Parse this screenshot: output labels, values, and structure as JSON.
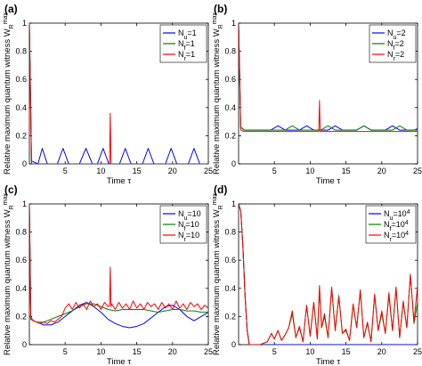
{
  "chart_data": [
    {
      "type": "line",
      "panel_label": "(a)",
      "xlabel": "Time τ",
      "ylabel": "Relative maximum quantum witness W",
      "ylabel_sub": "R",
      "ylabel_sup": "max",
      "xlim": [
        0,
        25
      ],
      "ylim": [
        0,
        1
      ],
      "xticks": [
        "5",
        "10",
        "15",
        "20",
        "25"
      ],
      "yticks": [
        "0",
        "0.2",
        "0.4",
        "0.6",
        "0.8",
        "1"
      ],
      "legend_position": "top-right",
      "series": [
        {
          "name": "N_u=1",
          "label_main": "N",
          "label_sub": "u",
          "label_rest": "=1",
          "color": "#0000ff",
          "x": [
            0,
            0.3,
            1.2,
            1.8,
            2.5,
            3.2,
            3.9,
            4.7,
            5.5,
            6.2,
            7.0,
            7.9,
            8.8,
            9.5,
            10.3,
            11.1,
            11.9,
            12.6,
            13.4,
            14.2,
            15.0,
            15.8,
            16.6,
            17.4,
            18.2,
            19.0,
            19.8,
            20.6,
            21.4,
            22.2,
            23.0,
            23.8,
            24.6,
            25
          ],
          "y": [
            1,
            0.02,
            0.0,
            0.11,
            0.0,
            0.0,
            0.0,
            0.11,
            0.0,
            0.0,
            0.0,
            0.11,
            0.0,
            0.0,
            0.11,
            0.0,
            0.0,
            0.0,
            0.11,
            0.0,
            0.0,
            0.0,
            0.11,
            0.0,
            0.0,
            0.0,
            0.11,
            0.0,
            0.0,
            0.0,
            0.11,
            0.0,
            0.0,
            0.0
          ]
        },
        {
          "name": "N_f=1",
          "label_main": "N",
          "label_sub": "f",
          "label_rest": "=1",
          "color": "#008000",
          "x": [
            0,
            0.3,
            25
          ],
          "y": [
            1,
            0.0,
            0.0
          ]
        },
        {
          "name": "N_r=1",
          "label_main": "N",
          "label_sub": "r",
          "label_rest": "=1",
          "color": "#ff0000",
          "x": [
            0,
            0.3,
            11.2,
            11.3,
            11.4,
            25
          ],
          "y": [
            1,
            0.0,
            0.0,
            0.36,
            0.0,
            0.0
          ]
        }
      ]
    },
    {
      "type": "line",
      "panel_label": "(b)",
      "xlabel": "Time τ",
      "ylabel": "Relative maximum quantum witness W",
      "ylabel_sub": "R",
      "ylabel_sup": "max",
      "xlim": [
        0,
        25
      ],
      "ylim": [
        0,
        1
      ],
      "xticks": [
        "5",
        "10",
        "15",
        "20",
        "25"
      ],
      "yticks": [
        "0",
        "0.2",
        "0.4",
        "0.6",
        "0.8",
        "1"
      ],
      "legend_position": "top-right",
      "series": [
        {
          "name": "N_u=2",
          "label_main": "N",
          "label_sub": "u",
          "label_rest": "=2",
          "color": "#0000ff",
          "x": [
            0,
            0.3,
            0.8,
            1.5,
            2.5,
            3.5,
            4.5,
            5.5,
            6.5,
            7.5,
            8.5,
            9.5,
            10.5,
            11.5,
            12.5,
            13.5,
            14.5,
            15.5,
            16.5,
            17.5,
            18.5,
            19.5,
            20.5,
            21.5,
            22.5,
            23.5,
            24.5,
            25
          ],
          "y": [
            1,
            0.26,
            0.24,
            0.24,
            0.24,
            0.24,
            0.24,
            0.27,
            0.24,
            0.24,
            0.24,
            0.27,
            0.24,
            0.24,
            0.24,
            0.27,
            0.24,
            0.24,
            0.24,
            0.27,
            0.24,
            0.24,
            0.24,
            0.27,
            0.24,
            0.24,
            0.24,
            0.25
          ]
        },
        {
          "name": "N_f=2",
          "label_main": "N",
          "label_sub": "f",
          "label_rest": "=2",
          "color": "#008000",
          "x": [
            0,
            0.3,
            0.8,
            2.0,
            3.5,
            5.0,
            6.5,
            7.5,
            8.5,
            10.0,
            11.5,
            12.5,
            13.5,
            15.0,
            16.5,
            17.5,
            18.5,
            20.0,
            21.5,
            22.5,
            23.5,
            25
          ],
          "y": [
            1,
            0.26,
            0.24,
            0.24,
            0.24,
            0.24,
            0.24,
            0.27,
            0.24,
            0.24,
            0.24,
            0.27,
            0.24,
            0.24,
            0.24,
            0.27,
            0.24,
            0.24,
            0.24,
            0.27,
            0.24,
            0.24
          ]
        },
        {
          "name": "N_r=2",
          "label_main": "N",
          "label_sub": "r",
          "label_rest": "=2",
          "color": "#ff0000",
          "x": [
            0,
            0.3,
            0.8,
            11.2,
            11.3,
            11.4,
            25
          ],
          "y": [
            1,
            0.24,
            0.23,
            0.23,
            0.45,
            0.23,
            0.23
          ]
        }
      ]
    },
    {
      "type": "line",
      "panel_label": "(c)",
      "xlabel": "Time τ",
      "ylabel": "Relative maximum quantum witness W",
      "ylabel_sub": "R",
      "ylabel_sup": "max",
      "xlim": [
        0,
        25
      ],
      "ylim": [
        0,
        1
      ],
      "xticks": [
        "5",
        "10",
        "15",
        "20",
        "25"
      ],
      "yticks": [
        "0",
        "0.2",
        "0.4",
        "0.6",
        "0.8",
        "1"
      ],
      "legend_position": "top-right",
      "series": [
        {
          "name": "N_u=10",
          "label_main": "N",
          "label_sub": "u",
          "label_rest": "=10",
          "color": "#0000ff",
          "x": [
            0,
            0.2,
            1,
            2,
            3,
            4,
            5,
            6,
            7,
            8,
            9,
            10,
            11,
            12,
            13,
            14,
            15,
            16,
            17,
            18,
            19,
            20,
            21,
            22,
            23,
            24,
            25
          ],
          "y": [
            1,
            0.18,
            0.16,
            0.14,
            0.14,
            0.16,
            0.2,
            0.24,
            0.28,
            0.3,
            0.27,
            0.23,
            0.18,
            0.15,
            0.13,
            0.12,
            0.13,
            0.15,
            0.19,
            0.23,
            0.27,
            0.28,
            0.25,
            0.2,
            0.17,
            0.2,
            0.23
          ]
        },
        {
          "name": "N_f=10",
          "label_main": "N",
          "label_sub": "f",
          "label_rest": "=10",
          "color": "#008000",
          "x": [
            0,
            0.2,
            1,
            2,
            3,
            4,
            5,
            6,
            7,
            8,
            9,
            10,
            11,
            12,
            13,
            14,
            15,
            16,
            17,
            18,
            19,
            20,
            21,
            22,
            23,
            24,
            25
          ],
          "y": [
            1,
            0.18,
            0.16,
            0.16,
            0.18,
            0.2,
            0.22,
            0.24,
            0.27,
            0.29,
            0.29,
            0.27,
            0.25,
            0.24,
            0.25,
            0.25,
            0.25,
            0.25,
            0.24,
            0.23,
            0.24,
            0.25,
            0.25,
            0.24,
            0.24,
            0.23,
            0.23
          ]
        },
        {
          "name": "N_r=10",
          "label_main": "N",
          "label_sub": "r",
          "label_rest": "=10",
          "color": "#ff0000",
          "x": [
            0,
            0.2,
            0.5,
            1,
            1.5,
            2,
            2.5,
            3,
            3.5,
            4,
            4.5,
            5,
            5.5,
            6,
            6.5,
            7,
            7.5,
            8,
            8.5,
            9,
            9.5,
            10,
            10.5,
            11,
            11.2,
            11.3,
            11.4,
            11.5,
            12,
            12.5,
            13,
            13.5,
            14,
            14.5,
            15,
            15.5,
            16,
            16.5,
            17,
            17.5,
            18,
            18.5,
            19,
            19.5,
            20,
            20.5,
            21,
            21.5,
            22,
            22.5,
            23,
            23.5,
            24,
            24.5,
            25
          ],
          "y": [
            1,
            0.2,
            0.17,
            0.16,
            0.15,
            0.16,
            0.15,
            0.17,
            0.16,
            0.18,
            0.2,
            0.26,
            0.29,
            0.25,
            0.3,
            0.26,
            0.29,
            0.25,
            0.31,
            0.27,
            0.29,
            0.25,
            0.3,
            0.27,
            0.28,
            0.55,
            0.27,
            0.29,
            0.25,
            0.3,
            0.26,
            0.29,
            0.25,
            0.31,
            0.26,
            0.29,
            0.25,
            0.3,
            0.27,
            0.29,
            0.25,
            0.3,
            0.26,
            0.29,
            0.25,
            0.31,
            0.26,
            0.29,
            0.25,
            0.3,
            0.27,
            0.29,
            0.25,
            0.28,
            0.26
          ]
        }
      ]
    },
    {
      "type": "line",
      "panel_label": "(d)",
      "xlabel": "Time τ",
      "ylabel": "Relative maximum quantum witness W",
      "ylabel_sub": "R",
      "ylabel_sup": "max",
      "xlim": [
        0,
        25
      ],
      "ylim": [
        0,
        1
      ],
      "xticks": [
        "5",
        "10",
        "15",
        "20",
        "25"
      ],
      "yticks": [
        "0",
        "0.2",
        "0.4",
        "0.6",
        "0.8",
        "1"
      ],
      "legend_position": "top-right",
      "series": [
        {
          "name": "N_u=10^4",
          "label_main": "N",
          "label_sub": "u",
          "label_rest": "=10",
          "label_sup": "4",
          "color": "#0000ff",
          "x": [
            0,
            0.3,
            0.6,
            0.9,
            1.2,
            1.5,
            2,
            25
          ],
          "y": [
            1,
            0.95,
            0.7,
            0.35,
            0.1,
            0.0,
            0.0,
            0.0
          ]
        },
        {
          "name": "N_f=10^4",
          "label_main": "N",
          "label_sub": "f",
          "label_rest": "=10",
          "label_sup": "4",
          "color": "#008000",
          "x": [
            0,
            0.3,
            0.6,
            0.9,
            1.2,
            1.5,
            2,
            3,
            4,
            4.6,
            5,
            5.5,
            6,
            6.5,
            7,
            7.5,
            8,
            8.5,
            9,
            9.5,
            10,
            10.5,
            11,
            11.3,
            11.6,
            12,
            12.5,
            13,
            13.5,
            14,
            14.5,
            15,
            15.5,
            16,
            16.5,
            17,
            17.5,
            18,
            18.5,
            19,
            19.5,
            20,
            20.5,
            21,
            21.5,
            22,
            22.5,
            23,
            23.5,
            24,
            24.5,
            25
          ],
          "y": [
            1,
            0.95,
            0.7,
            0.35,
            0.1,
            0.0,
            0.0,
            0.0,
            0.02,
            0.08,
            0.04,
            0.1,
            0.03,
            0.07,
            0.12,
            0.22,
            0.05,
            0.12,
            0.02,
            0.28,
            0.06,
            0.3,
            0.04,
            0.4,
            0.12,
            0.2,
            0.05,
            0.4,
            0.1,
            0.35,
            0.08,
            0.1,
            0.03,
            0.28,
            0.12,
            0.38,
            0.05,
            0.15,
            0.02,
            0.35,
            0.1,
            0.22,
            0.08,
            0.35,
            0.1,
            0.4,
            0.05,
            0.3,
            0.12,
            0.5,
            0.15,
            0.3
          ]
        },
        {
          "name": "N_r=10^4",
          "label_main": "N",
          "label_sub": "r",
          "label_rest": "=10",
          "label_sup": "4",
          "color": "#ff0000",
          "x": [
            0,
            0.3,
            0.6,
            0.9,
            1.2,
            1.5,
            2,
            3,
            4,
            4.6,
            5,
            5.5,
            6,
            6.5,
            7,
            7.5,
            8,
            8.5,
            9,
            9.5,
            10,
            10.5,
            11,
            11.3,
            11.6,
            12,
            12.5,
            13,
            13.5,
            14,
            14.5,
            15,
            15.5,
            16,
            16.5,
            17,
            17.5,
            18,
            18.5,
            19,
            19.5,
            20,
            20.5,
            21,
            21.5,
            22,
            22.5,
            23,
            23.5,
            24,
            24.5,
            25
          ],
          "y": [
            1,
            0.95,
            0.7,
            0.35,
            0.1,
            0.0,
            0.0,
            0.0,
            0.02,
            0.08,
            0.04,
            0.1,
            0.03,
            0.07,
            0.12,
            0.24,
            0.05,
            0.13,
            0.02,
            0.28,
            0.06,
            0.3,
            0.04,
            0.42,
            0.12,
            0.22,
            0.05,
            0.41,
            0.1,
            0.34,
            0.08,
            0.11,
            0.03,
            0.29,
            0.12,
            0.39,
            0.05,
            0.16,
            0.02,
            0.36,
            0.1,
            0.24,
            0.08,
            0.37,
            0.1,
            0.41,
            0.05,
            0.31,
            0.12,
            0.5,
            0.16,
            0.42
          ]
        }
      ]
    }
  ]
}
